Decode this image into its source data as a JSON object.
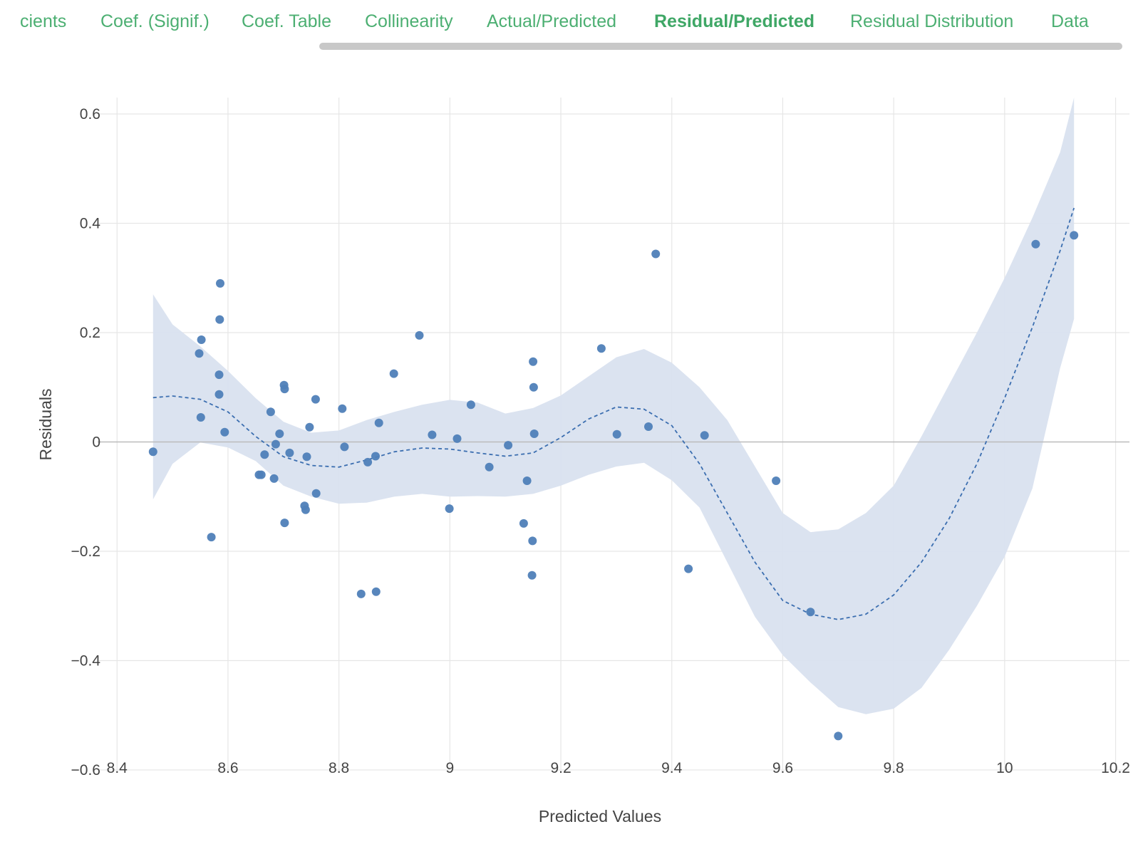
{
  "tabs": [
    {
      "label": "cients",
      "active": false
    },
    {
      "label": "Coef. (Signif.)",
      "active": false
    },
    {
      "label": "Coef. Table",
      "active": false
    },
    {
      "label": "Collinearity",
      "active": false
    },
    {
      "label": "Actual/Predicted",
      "active": false
    },
    {
      "label": "Residual/Predicted",
      "active": true
    },
    {
      "label": "Residual Distribution",
      "active": false
    },
    {
      "label": "Data",
      "active": false
    }
  ],
  "colors": {
    "tab_text": "#4caf72",
    "points": "#4f7fb8",
    "band": "#d9e2ef",
    "smooth_line": "#3b6eb0",
    "grid": "#e6e6e6",
    "zero_line": "#bbbbbb"
  },
  "chart_data": {
    "type": "scatter",
    "xlabel": "Predicted Values",
    "ylabel": "Residuals",
    "xlim": [
      8.365,
      10.225
    ],
    "ylim": [
      -0.6,
      0.63
    ],
    "xticks": [
      8.4,
      8.6,
      8.8,
      9,
      9.2,
      9.4,
      9.6,
      9.8,
      10,
      10.2
    ],
    "xtick_labels": [
      "8.4",
      "8.6",
      "8.8",
      "9",
      "9.2",
      "9.4",
      "9.6",
      "9.8",
      "10",
      "10.2"
    ],
    "yticks": [
      0.6,
      0.4,
      0.2,
      0,
      -0.2,
      -0.4,
      -0.6
    ],
    "ytick_labels": [
      "0.6",
      "0.4",
      "0.2",
      "0",
      "−0.2",
      "−0.4",
      "−0.6"
    ],
    "grid": true,
    "zero_line": true,
    "points": [
      [
        8.465,
        -0.018
      ],
      [
        8.548,
        0.162
      ],
      [
        8.551,
        0.045
      ],
      [
        8.552,
        0.187
      ],
      [
        8.57,
        -0.174
      ],
      [
        8.584,
        0.123
      ],
      [
        8.584,
        0.087
      ],
      [
        8.585,
        0.224
      ],
      [
        8.586,
        0.29
      ],
      [
        8.594,
        0.018
      ],
      [
        8.656,
        -0.06
      ],
      [
        8.66,
        -0.06
      ],
      [
        8.666,
        -0.023
      ],
      [
        8.677,
        0.055
      ],
      [
        8.683,
        -0.067
      ],
      [
        8.686,
        -0.004
      ],
      [
        8.693,
        0.015
      ],
      [
        8.701,
        0.104
      ],
      [
        8.702,
        0.097
      ],
      [
        8.702,
        -0.148
      ],
      [
        8.711,
        -0.02
      ],
      [
        8.738,
        -0.117
      ],
      [
        8.74,
        -0.124
      ],
      [
        8.742,
        -0.027
      ],
      [
        8.747,
        0.027
      ],
      [
        8.758,
        0.078
      ],
      [
        8.759,
        -0.094
      ],
      [
        8.806,
        0.061
      ],
      [
        8.81,
        -0.009
      ],
      [
        8.84,
        -0.278
      ],
      [
        8.852,
        -0.037
      ],
      [
        8.866,
        -0.026
      ],
      [
        8.867,
        -0.274
      ],
      [
        8.872,
        0.035
      ],
      [
        8.899,
        0.125
      ],
      [
        8.945,
        0.195
      ],
      [
        8.968,
        0.013
      ],
      [
        8.999,
        -0.122
      ],
      [
        9.013,
        0.006
      ],
      [
        9.038,
        0.068
      ],
      [
        9.071,
        -0.046
      ],
      [
        9.105,
        -0.006
      ],
      [
        9.133,
        -0.149
      ],
      [
        9.139,
        -0.071
      ],
      [
        9.148,
        -0.244
      ],
      [
        9.149,
        -0.181
      ],
      [
        9.15,
        0.147
      ],
      [
        9.151,
        0.1
      ],
      [
        9.152,
        0.015
      ],
      [
        9.273,
        0.171
      ],
      [
        9.301,
        0.014
      ],
      [
        9.358,
        0.028
      ],
      [
        9.371,
        0.344
      ],
      [
        9.43,
        -0.232
      ],
      [
        9.459,
        0.012
      ],
      [
        9.588,
        -0.071
      ],
      [
        9.65,
        -0.311
      ],
      [
        9.7,
        -0.538
      ],
      [
        10.056,
        0.362
      ],
      [
        10.125,
        0.378
      ]
    ],
    "smooth": {
      "x": [
        8.465,
        8.5,
        8.55,
        8.6,
        8.65,
        8.7,
        8.75,
        8.8,
        8.85,
        8.9,
        8.95,
        9.0,
        9.05,
        9.1,
        9.15,
        9.2,
        9.25,
        9.3,
        9.35,
        9.4,
        9.45,
        9.5,
        9.55,
        9.6,
        9.65,
        9.7,
        9.75,
        9.8,
        9.85,
        9.9,
        9.95,
        10.0,
        10.05,
        10.1,
        10.125
      ],
      "y": [
        0.081,
        0.084,
        0.078,
        0.055,
        0.01,
        -0.027,
        -0.043,
        -0.046,
        -0.033,
        -0.018,
        -0.011,
        -0.013,
        -0.02,
        -0.026,
        -0.02,
        0.008,
        0.042,
        0.064,
        0.06,
        0.03,
        -0.04,
        -0.13,
        -0.22,
        -0.29,
        -0.315,
        -0.325,
        -0.315,
        -0.28,
        -0.22,
        -0.14,
        -0.04,
        0.08,
        0.21,
        0.35,
        0.428
      ],
      "upper": [
        0.27,
        0.215,
        0.175,
        0.13,
        0.08,
        0.037,
        0.017,
        0.021,
        0.04,
        0.055,
        0.068,
        0.077,
        0.072,
        0.052,
        0.062,
        0.085,
        0.12,
        0.155,
        0.17,
        0.145,
        0.1,
        0.04,
        -0.045,
        -0.13,
        -0.165,
        -0.16,
        -0.13,
        -0.08,
        0.01,
        0.105,
        0.2,
        0.3,
        0.41,
        0.53,
        0.63
      ],
      "lower": [
        -0.105,
        -0.04,
        -0.001,
        -0.01,
        -0.035,
        -0.08,
        -0.1,
        -0.113,
        -0.111,
        -0.1,
        -0.095,
        -0.1,
        -0.099,
        -0.1,
        -0.095,
        -0.08,
        -0.06,
        -0.045,
        -0.038,
        -0.07,
        -0.12,
        -0.22,
        -0.32,
        -0.39,
        -0.44,
        -0.485,
        -0.498,
        -0.488,
        -0.45,
        -0.38,
        -0.3,
        -0.21,
        -0.085,
        0.135,
        0.225
      ]
    }
  }
}
